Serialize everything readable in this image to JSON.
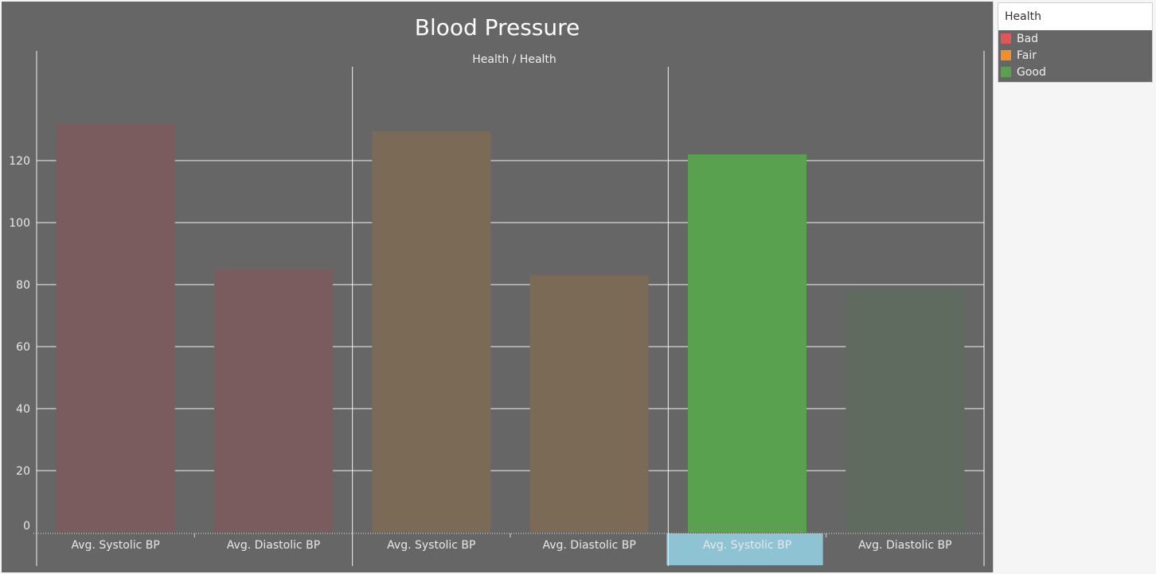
{
  "chart_data": {
    "type": "bar",
    "title": "Blood Pressure",
    "column_header": "Health / Health",
    "ylim": [
      0,
      140
    ],
    "yticks": [
      0,
      20,
      40,
      60,
      80,
      100,
      120
    ],
    "grid": true,
    "legend_position": "top-right",
    "groups": [
      {
        "name": "Bad",
        "bars": [
          {
            "label": "Avg. Systolic BP",
            "value": 132,
            "color": "#7a5c5e"
          },
          {
            "label": "Avg. Diastolic BP",
            "value": 85,
            "color": "#7a5c5e"
          }
        ]
      },
      {
        "name": "Fair",
        "bars": [
          {
            "label": "Avg. Systolic BP",
            "value": 129.5,
            "color": "#7a6a56"
          },
          {
            "label": "Avg. Diastolic BP",
            "value": 83,
            "color": "#7a6a56"
          }
        ]
      },
      {
        "name": "Good",
        "bars": [
          {
            "label": "Avg. Systolic BP",
            "value": 122,
            "color": "#59a14f",
            "highlighted": true
          },
          {
            "label": "Avg. Diastolic BP",
            "value": 78,
            "color": "#5f6b5e"
          }
        ]
      }
    ]
  },
  "legend": {
    "title": "Health",
    "items": [
      {
        "label": "Bad",
        "color": "#e15759"
      },
      {
        "label": "Fair",
        "color": "#f28e2b"
      },
      {
        "label": "Good",
        "color": "#59a14f"
      }
    ]
  },
  "colors": {
    "panel_bg": "#666666",
    "highlight_label_bg": "#8ec3d3"
  }
}
